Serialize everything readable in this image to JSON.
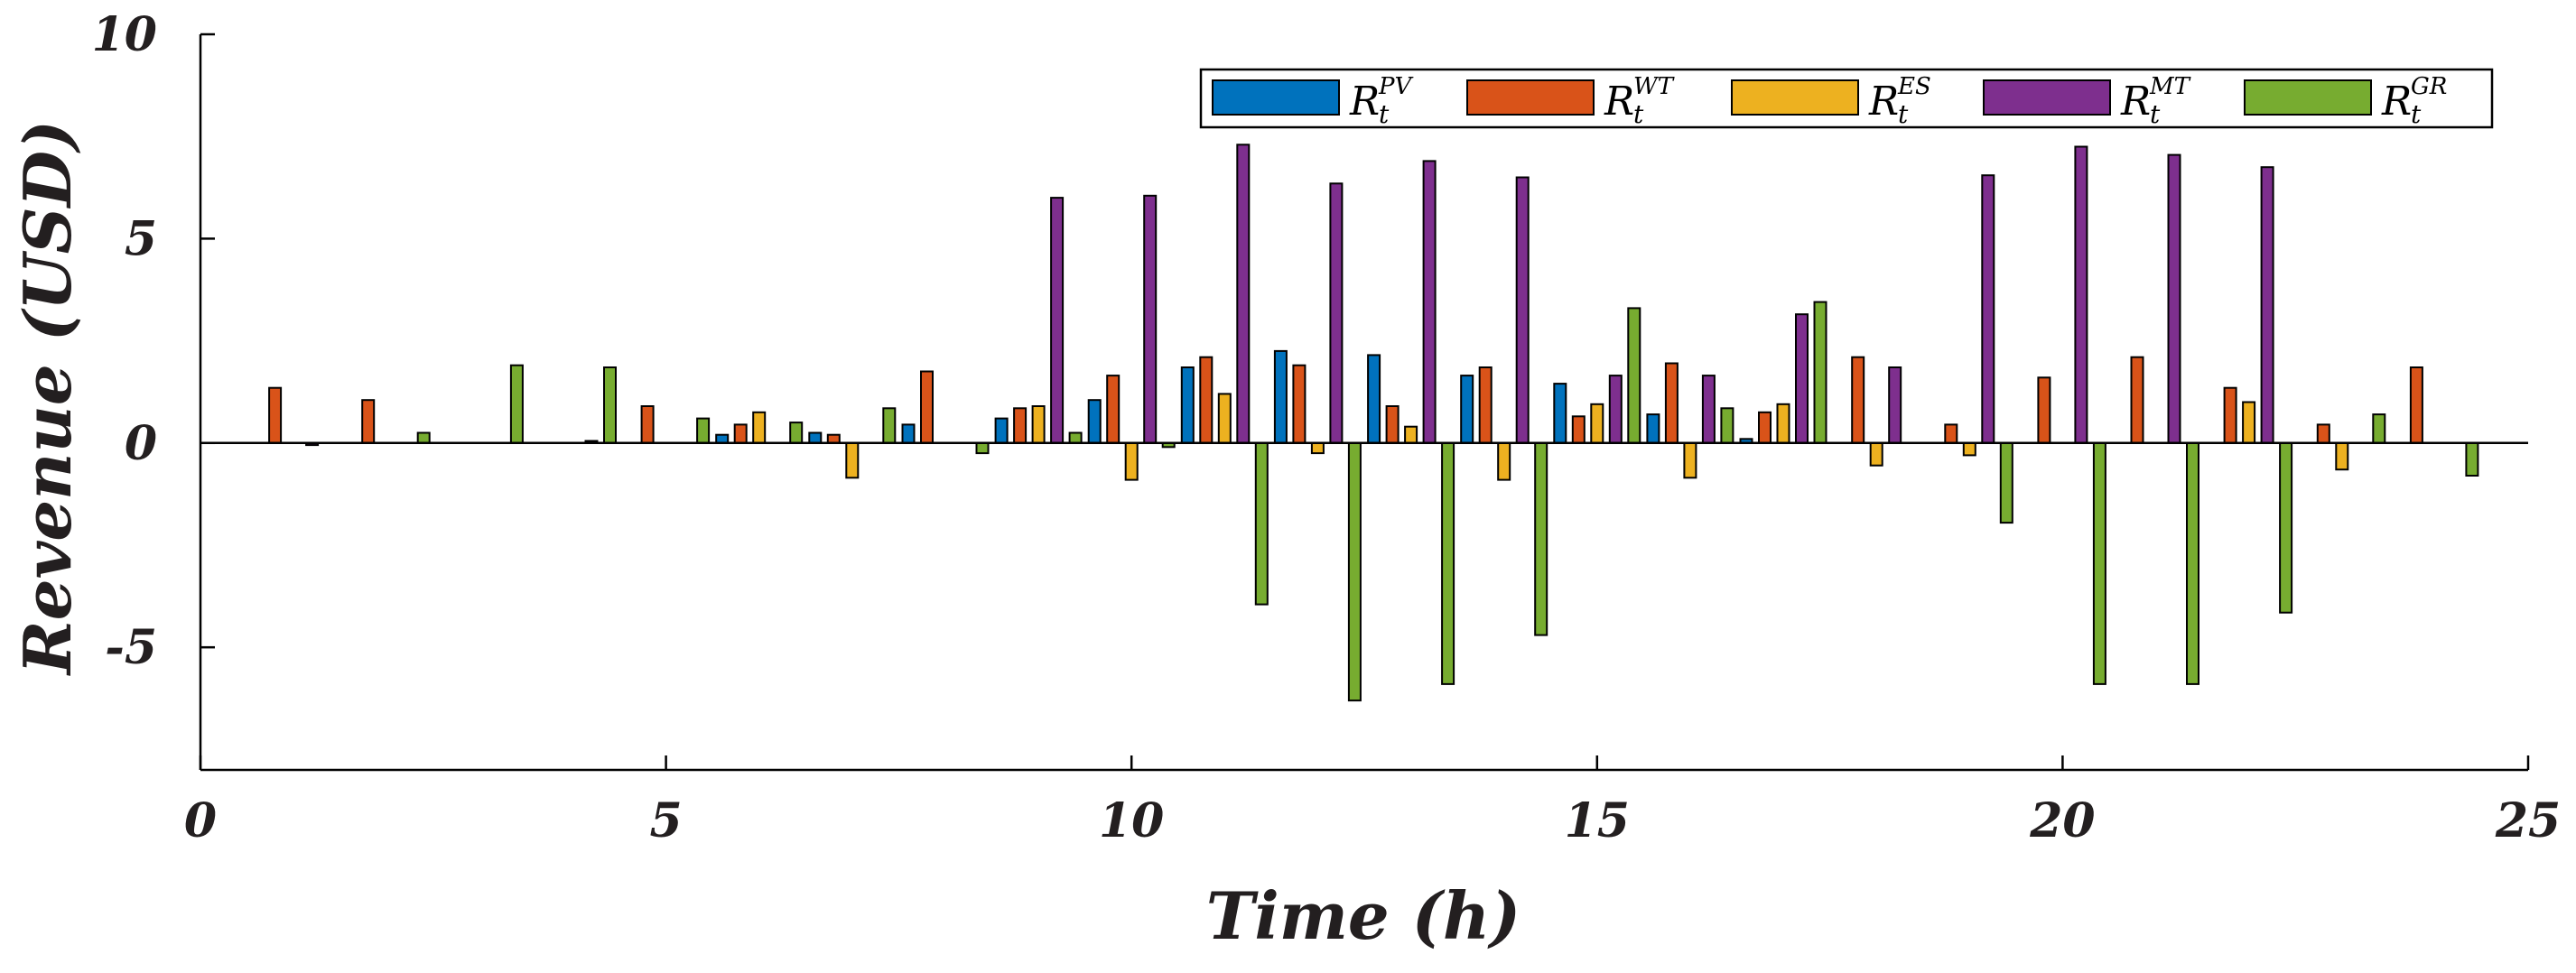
{
  "chart_data": {
    "type": "bar",
    "title": "",
    "xlabel": "Time (h)",
    "ylabel": "Revenue (USD)",
    "xlim": [
      0,
      25
    ],
    "ylim": [
      -8,
      10
    ],
    "xticks": [
      "0",
      "5",
      "10",
      "15",
      "20",
      "25"
    ],
    "yticks": [
      "10",
      "5",
      "0",
      "-5"
    ],
    "xtick_values": [
      0,
      5,
      10,
      15,
      20,
      25
    ],
    "ytick_values": [
      10,
      5,
      0,
      -5
    ],
    "grid": false,
    "legend_position": "top-right",
    "categories": [
      1,
      2,
      3,
      4,
      5,
      6,
      7,
      8,
      9,
      10,
      11,
      12,
      13,
      14,
      15,
      16,
      17,
      18,
      19,
      20,
      21,
      22,
      23,
      24
    ],
    "series": [
      {
        "name": "PV",
        "label_main": "R",
        "label_sup": "PV",
        "label_sub": "t",
        "color": "#0072bd",
        "values": [
          0,
          0,
          0,
          0,
          0,
          0.2,
          0.25,
          0.45,
          0.6,
          1.05,
          1.85,
          2.25,
          2.15,
          1.65,
          1.45,
          0.7,
          0.1,
          0,
          0,
          0,
          0,
          0,
          0,
          0
        ]
      },
      {
        "name": "WT",
        "label_main": "R",
        "label_sup": "WT",
        "label_sub": "t",
        "color": "#d95319",
        "values": [
          1.35,
          1.05,
          0,
          0,
          0.9,
          0.45,
          0.2,
          1.75,
          0.85,
          1.65,
          2.1,
          1.9,
          0.9,
          1.85,
          0.65,
          1.95,
          0.75,
          2.1,
          0.45,
          1.6,
          2.1,
          1.35,
          0.45,
          1.85
        ]
      },
      {
        "name": "ES",
        "label_main": "R",
        "label_sup": "ES",
        "label_sub": "t",
        "color": "#edb120",
        "values": [
          0,
          0,
          0,
          0,
          0,
          0.75,
          -0.85,
          0,
          0.9,
          -0.9,
          1.2,
          -0.25,
          0.4,
          -0.9,
          0.95,
          -0.85,
          0.95,
          -0.55,
          -0.3,
          0,
          0,
          1.0,
          -0.65,
          0
        ]
      },
      {
        "name": "MT",
        "label_main": "R",
        "label_sup": "MT",
        "label_sub": "t",
        "color": "#7e2f8e",
        "values": [
          -0.05,
          0,
          0,
          0.05,
          0,
          0,
          0,
          0,
          6.0,
          6.05,
          7.3,
          6.35,
          6.9,
          6.5,
          1.65,
          1.65,
          3.15,
          1.85,
          6.55,
          7.25,
          7.05,
          6.75,
          0,
          0
        ]
      },
      {
        "name": "GR",
        "label_main": "R",
        "label_sup": "GR",
        "label_sub": "t",
        "color": "#77ac30",
        "values": [
          0,
          0.25,
          1.9,
          1.85,
          0.6,
          0.5,
          0.85,
          -0.25,
          0.25,
          -0.1,
          -3.95,
          -6.3,
          -5.9,
          -4.7,
          3.3,
          0.85,
          3.45,
          0,
          -1.95,
          -5.9,
          -5.9,
          -4.15,
          0.7,
          -0.8
        ]
      }
    ]
  }
}
